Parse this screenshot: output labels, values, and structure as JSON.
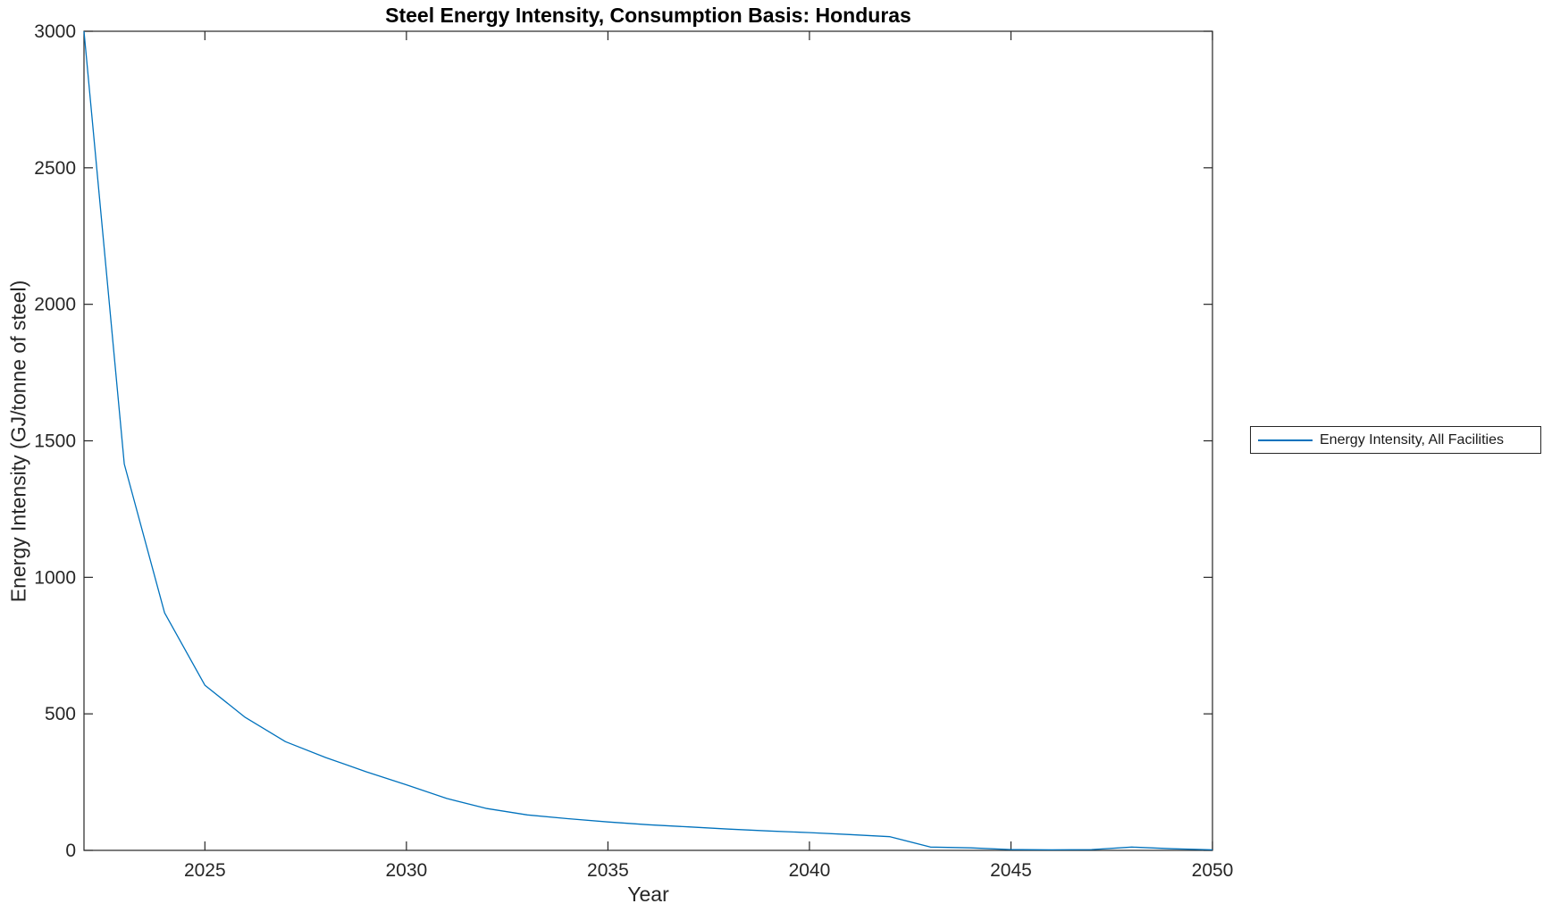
{
  "figure": {
    "title": "Steel Energy Intensity, Consumption Basis: Honduras",
    "x_label": "Year",
    "y_label": "Energy Intensity (GJ/tonne of steel)",
    "background_color": "#ffffff",
    "axis_color": "#262626"
  },
  "legend": {
    "label": "Energy Intensity, All Facilities",
    "line_color": "#0072BD"
  },
  "chart_data": {
    "type": "line",
    "title": "Steel Energy Intensity, Consumption Basis: Honduras",
    "xlabel": "Year",
    "ylabel": "Energy Intensity (GJ/tonne of steel)",
    "xlim": [
      2022,
      2050
    ],
    "ylim": [
      0,
      3000
    ],
    "x_ticks": [
      2025,
      2030,
      2035,
      2040,
      2045,
      2050
    ],
    "y_ticks": [
      0,
      500,
      1000,
      1500,
      2000,
      2500,
      3000
    ],
    "grid": false,
    "box": true,
    "legend_position": "right-outside",
    "series": [
      {
        "name": "Energy Intensity, All Facilities",
        "color": "#0072BD",
        "x": [
          2022,
          2023,
          2024,
          2025,
          2026,
          2027,
          2028,
          2029,
          2030,
          2031,
          2032,
          2033,
          2034,
          2035,
          2036,
          2037,
          2038,
          2039,
          2040,
          2041,
          2042,
          2043,
          2044,
          2045,
          2046,
          2047,
          2048,
          2049,
          2050
        ],
        "y": [
          3000,
          1415,
          870,
          605,
          487,
          398,
          340,
          288,
          240,
          190,
          153,
          130,
          116,
          104,
          94,
          86,
          78,
          71,
          65,
          58,
          50,
          12,
          9,
          3,
          2,
          3,
          12,
          6,
          2
        ]
      }
    ]
  }
}
